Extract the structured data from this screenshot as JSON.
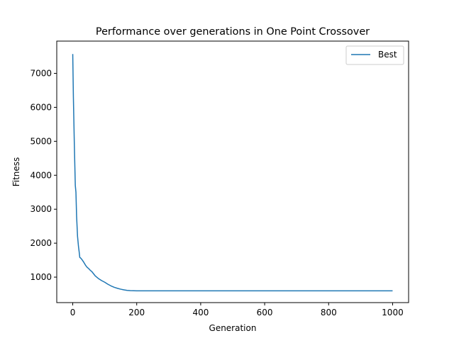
{
  "chart_data": {
    "type": "line",
    "title": "Performance over generations in One Point Crossover",
    "xlabel": "Generation",
    "ylabel": "Fitness",
    "xlim": [
      -50,
      1050
    ],
    "ylim": [
      250,
      7950
    ],
    "xticks": [
      0,
      200,
      400,
      600,
      800,
      1000
    ],
    "yticks": [
      1000,
      2000,
      3000,
      4000,
      5000,
      6000,
      7000
    ],
    "xtick_labels": [
      "0",
      "200",
      "400",
      "600",
      "800",
      "1000"
    ],
    "ytick_labels": [
      "1000",
      "2000",
      "3000",
      "4000",
      "5000",
      "6000",
      "7000"
    ],
    "grid": false,
    "legend_position": "top-right",
    "series": [
      {
        "name": "Best",
        "color": "#1f77b4",
        "x": [
          0,
          2,
          5,
          8,
          10,
          12,
          15,
          18,
          20,
          22,
          25,
          30,
          35,
          40,
          45,
          50,
          55,
          60,
          65,
          70,
          75,
          80,
          90,
          100,
          110,
          120,
          130,
          140,
          150,
          160,
          170,
          180,
          190,
          200,
          250,
          300,
          400,
          500,
          600,
          700,
          800,
          900,
          1000
        ],
        "y": [
          7570,
          6300,
          4900,
          3700,
          3500,
          2800,
          2200,
          1900,
          1750,
          1580,
          1560,
          1500,
          1430,
          1350,
          1290,
          1250,
          1200,
          1160,
          1100,
          1040,
          1000,
          960,
          900,
          850,
          790,
          740,
          700,
          670,
          645,
          625,
          610,
          603,
          600,
          598,
          597,
          597,
          597,
          597,
          597,
          597,
          597,
          597,
          597
        ]
      }
    ]
  }
}
